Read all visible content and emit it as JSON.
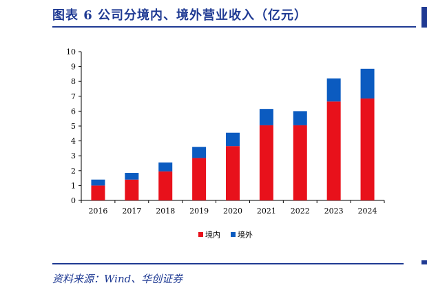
{
  "figure": {
    "title": "图表 6   公司分境内、境外营业收入（亿元）",
    "source": "资料来源：Wind、华创证券"
  },
  "chart_data": {
    "type": "bar",
    "stacked": true,
    "categories": [
      "2016",
      "2017",
      "2018",
      "2019",
      "2020",
      "2021",
      "2022",
      "2023",
      "2024"
    ],
    "series": [
      {
        "name": "境内",
        "color": "#e8111b",
        "values": [
          1.0,
          1.4,
          1.95,
          2.85,
          3.65,
          5.05,
          5.05,
          6.65,
          6.85
        ]
      },
      {
        "name": "境外",
        "color": "#0b5bc0",
        "values": [
          0.4,
          0.45,
          0.6,
          0.75,
          0.9,
          1.1,
          0.95,
          1.55,
          2.0
        ]
      }
    ],
    "ylim": [
      0,
      10
    ],
    "yticks": [
      "0",
      "1",
      "2",
      "3",
      "4",
      "5",
      "6",
      "7",
      "8",
      "9",
      "10"
    ],
    "legend_position": "bottom-center",
    "grid": false
  }
}
